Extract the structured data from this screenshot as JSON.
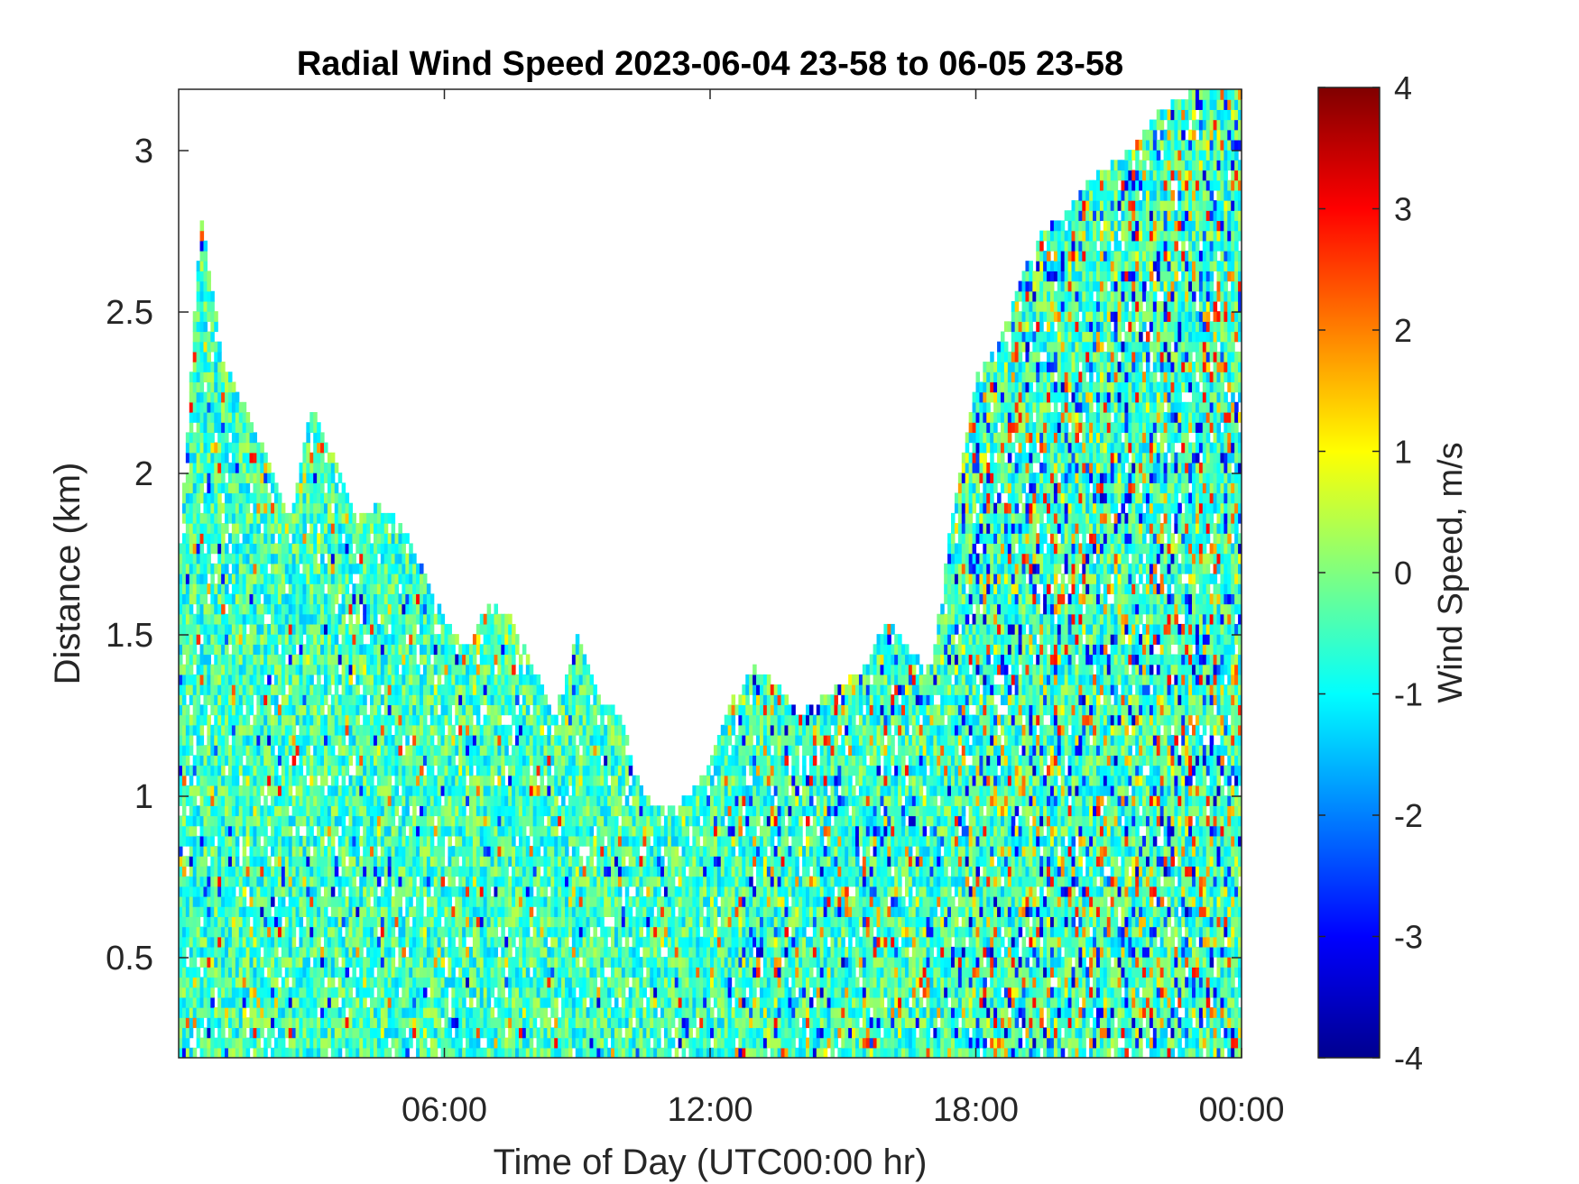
{
  "chart_data": {
    "type": "heatmap",
    "title": "Radial Wind Speed 2023-06-04 23-58 to 06-05 23-58",
    "xlabel": "Time of Day (UTC00:00 hr)",
    "ylabel": "Distance (km)",
    "xlim": [
      0,
      24
    ],
    "ylim": [
      0.19,
      3.19
    ],
    "x_ticks": [
      {
        "value": 6,
        "label": "06:00"
      },
      {
        "value": 12,
        "label": "12:00"
      },
      {
        "value": 18,
        "label": "18:00"
      },
      {
        "value": 24,
        "label": "00:00"
      }
    ],
    "y_ticks": [
      {
        "value": 0.5,
        "label": "0.5"
      },
      {
        "value": 1.0,
        "label": "1"
      },
      {
        "value": 1.5,
        "label": "1.5"
      },
      {
        "value": 2.0,
        "label": "2"
      },
      {
        "value": 2.5,
        "label": "2.5"
      },
      {
        "value": 3.0,
        "label": "3"
      }
    ],
    "grid": false,
    "colorbar": {
      "label": "Wind Speed, m/s",
      "colormap": "jet",
      "limits": [
        -4,
        4
      ],
      "ticks": [
        {
          "value": 4,
          "label": "4"
        },
        {
          "value": 3,
          "label": "3"
        },
        {
          "value": 2,
          "label": "2"
        },
        {
          "value": 1,
          "label": "1"
        },
        {
          "value": 0,
          "label": "0"
        },
        {
          "value": -1,
          "label": "-1"
        },
        {
          "value": -2,
          "label": "-2"
        },
        {
          "value": -3,
          "label": "-3"
        },
        {
          "value": -4,
          "label": "-4"
        }
      ]
    },
    "valid_range_envelope": {
      "hour": [
        0,
        0.5,
        1.0,
        1.5,
        2.0,
        2.5,
        3.0,
        3.5,
        4.0,
        4.5,
        5.0,
        5.5,
        6.0,
        6.5,
        7.0,
        7.5,
        8.0,
        8.5,
        9.0,
        9.5,
        10.0,
        10.5,
        11.0,
        11.5,
        12.0,
        12.5,
        13.0,
        13.5,
        14.0,
        14.5,
        15.0,
        15.5,
        16.0,
        16.5,
        17.0,
        17.5,
        18.0,
        18.5,
        19.0,
        19.5,
        20.0,
        20.5,
        21.0,
        21.5,
        22.0,
        22.5,
        23.0,
        23.5,
        24.0
      ],
      "top_km": [
        1.7,
        2.8,
        2.35,
        2.2,
        2.05,
        1.85,
        2.2,
        2.05,
        1.85,
        1.9,
        1.85,
        1.7,
        1.55,
        1.45,
        1.6,
        1.55,
        1.4,
        1.25,
        1.5,
        1.3,
        1.25,
        1.0,
        0.95,
        1.0,
        1.1,
        1.3,
        1.4,
        1.35,
        1.25,
        1.3,
        1.35,
        1.4,
        1.55,
        1.45,
        1.4,
        1.9,
        2.3,
        2.4,
        2.6,
        2.75,
        2.8,
        2.9,
        2.95,
        3.0,
        3.1,
        3.15,
        3.19,
        3.19,
        3.19
      ]
    },
    "dominant_value_range": [
      -1.5,
      0.5
    ]
  }
}
